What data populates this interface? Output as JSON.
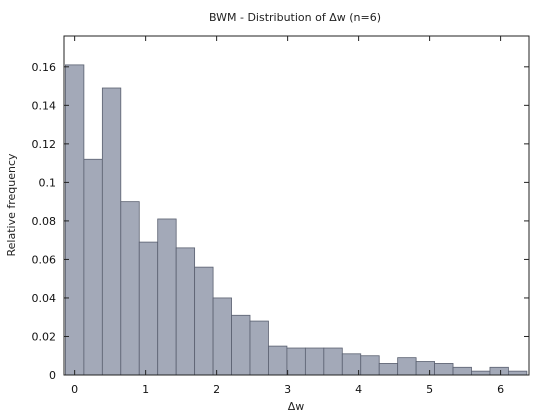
{
  "chart_data": {
    "type": "bar",
    "title": "BWM - Distribution of Δw (n=6)",
    "xlabel": "Δw",
    "ylabel": "Relative frequency",
    "bin_width": 0.26,
    "bins": [
      {
        "x": 0.0,
        "y": 0.161
      },
      {
        "x": 0.26,
        "y": 0.112
      },
      {
        "x": 0.52,
        "y": 0.149
      },
      {
        "x": 0.78,
        "y": 0.09
      },
      {
        "x": 1.04,
        "y": 0.069
      },
      {
        "x": 1.3,
        "y": 0.081
      },
      {
        "x": 1.56,
        "y": 0.066
      },
      {
        "x": 1.82,
        "y": 0.056
      },
      {
        "x": 2.08,
        "y": 0.04
      },
      {
        "x": 2.34,
        "y": 0.031
      },
      {
        "x": 2.6,
        "y": 0.028
      },
      {
        "x": 2.86,
        "y": 0.015
      },
      {
        "x": 3.12,
        "y": 0.014
      },
      {
        "x": 3.38,
        "y": 0.014
      },
      {
        "x": 3.64,
        "y": 0.014
      },
      {
        "x": 3.9,
        "y": 0.011
      },
      {
        "x": 4.16,
        "y": 0.01
      },
      {
        "x": 4.42,
        "y": 0.006
      },
      {
        "x": 4.68,
        "y": 0.009
      },
      {
        "x": 4.94,
        "y": 0.007
      },
      {
        "x": 5.2,
        "y": 0.006
      },
      {
        "x": 5.46,
        "y": 0.004
      },
      {
        "x": 5.72,
        "y": 0.002
      },
      {
        "x": 5.98,
        "y": 0.004
      },
      {
        "x": 6.24,
        "y": 0.002
      }
    ],
    "xlim": [
      -0.15,
      6.4
    ],
    "ylim": [
      0,
      0.176
    ],
    "xticks": [
      0,
      1,
      2,
      3,
      4,
      5,
      6
    ],
    "xtick_labels": [
      "0",
      "1",
      "2",
      "3",
      "4",
      "5",
      "6"
    ],
    "yticks": [
      0,
      0.02,
      0.04,
      0.06,
      0.08,
      0.1,
      0.12,
      0.14,
      0.16
    ],
    "ytick_labels": [
      "0",
      "0.02",
      "0.04",
      "0.06",
      "0.08",
      "0.1",
      "0.12",
      "0.14",
      "0.16"
    ],
    "grid": false,
    "bar_color": "#a3a9b8",
    "bar_edge_color": "#5a6070"
  }
}
